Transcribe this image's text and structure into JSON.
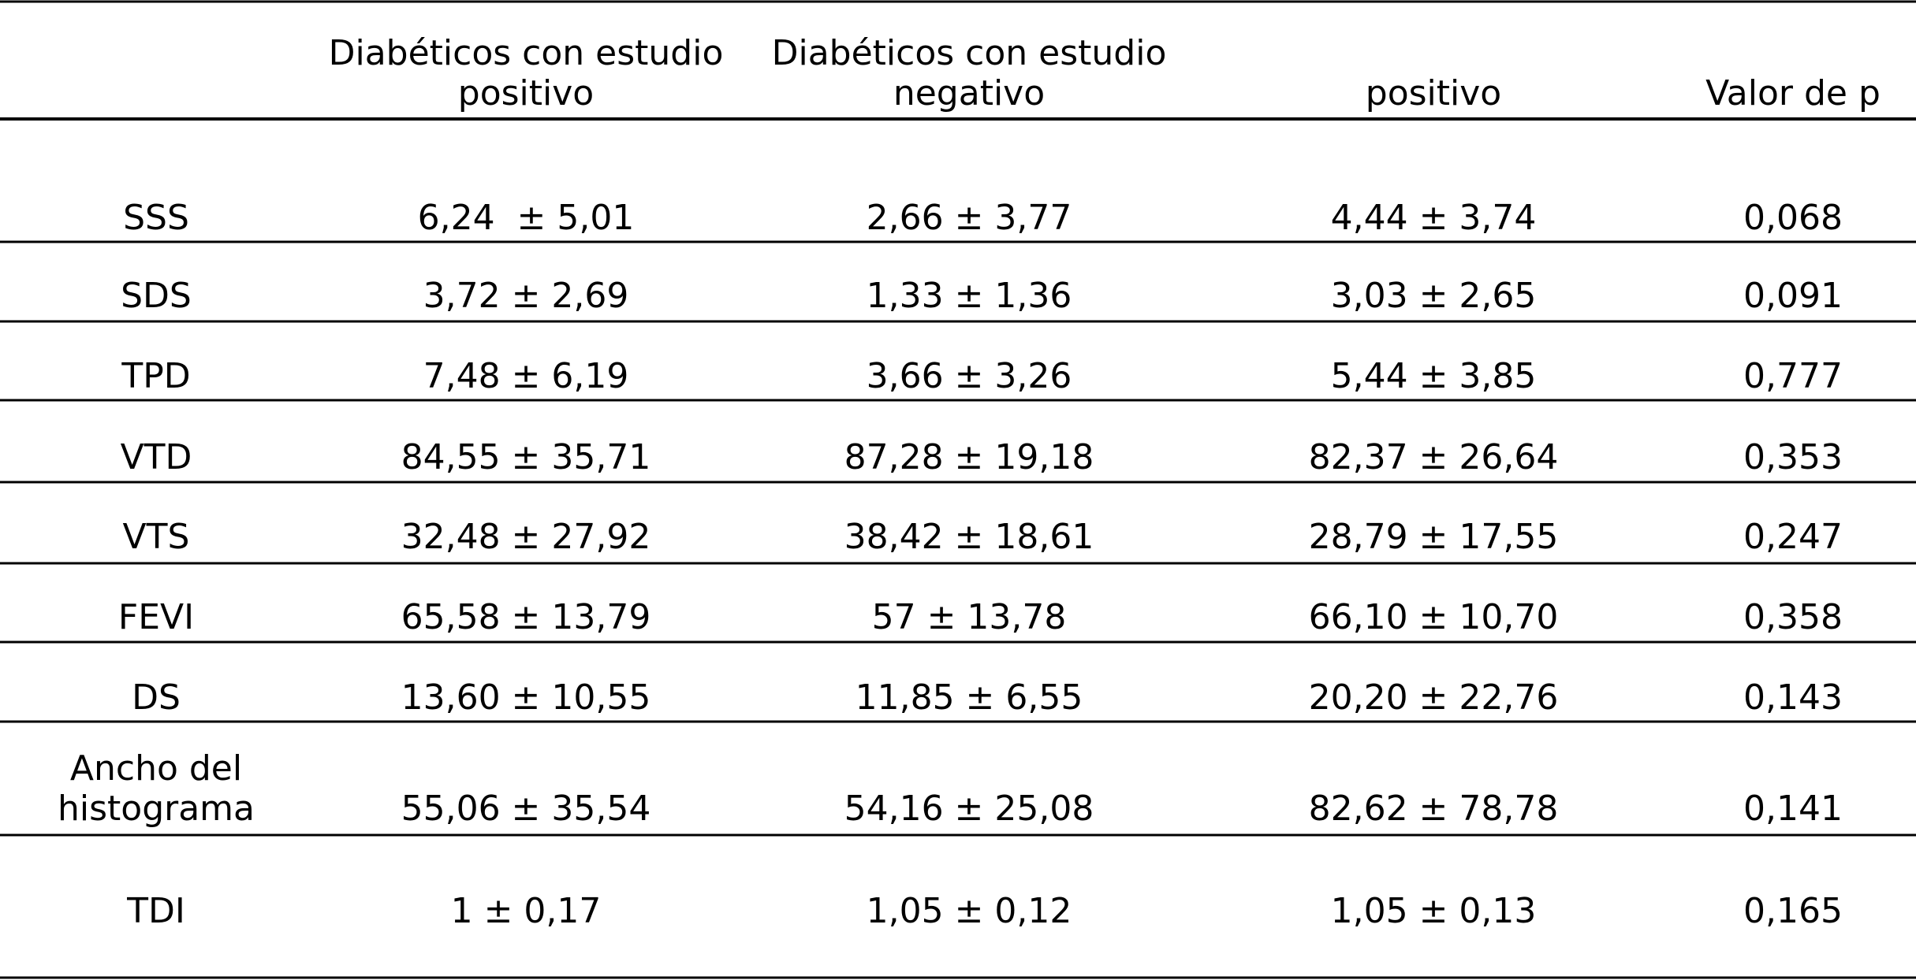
{
  "table": {
    "header": [
      [
        "Diabéticos con estudio",
        "positivo"
      ],
      [
        "Diabéticos con estudio",
        "negativo"
      ],
      [
        "positivo"
      ],
      [
        "Valor de p"
      ]
    ],
    "rows": [
      {
        "label": [
          "SSS"
        ],
        "cells": [
          "6,24  ± 5,01",
          "2,66 ± 3,77",
          "4,44 ± 3,74",
          "0,068"
        ]
      },
      {
        "label": [
          "SDS"
        ],
        "cells": [
          "3,72 ± 2,69",
          "1,33 ± 1,36",
          "3,03 ± 2,65",
          "0,091"
        ]
      },
      {
        "label": [
          "TPD"
        ],
        "cells": [
          "7,48 ± 6,19",
          "3,66 ± 3,26",
          "5,44 ± 3,85",
          "0,777"
        ]
      },
      {
        "label": [
          "VTD"
        ],
        "cells": [
          "84,55 ± 35,71",
          "87,28 ± 19,18",
          "82,37 ± 26,64",
          "0,353"
        ]
      },
      {
        "label": [
          "VTS"
        ],
        "cells": [
          "32,48 ± 27,92",
          "38,42 ± 18,61",
          "28,79 ± 17,55",
          "0,247"
        ]
      },
      {
        "label": [
          "FEVI"
        ],
        "cells": [
          "65,58 ± 13,79",
          "57 ± 13,78",
          "66,10 ± 10,70",
          "0,358"
        ]
      },
      {
        "label": [
          "DS"
        ],
        "cells": [
          "13,60 ± 10,55",
          "11,85 ± 6,55",
          "20,20 ± 22,76",
          "0,143"
        ]
      },
      {
        "label": [
          "Ancho del",
          "histograma"
        ],
        "cells": [
          "55,06 ± 35,54",
          "54,16 ± 25,08",
          "82,62 ± 78,78",
          "0,141"
        ]
      },
      {
        "label": [
          "TDI"
        ],
        "cells": [
          "1 ± 0,17",
          "1,05 ± 0,12",
          "1,05 ± 0,13",
          "0,165"
        ]
      }
    ]
  }
}
